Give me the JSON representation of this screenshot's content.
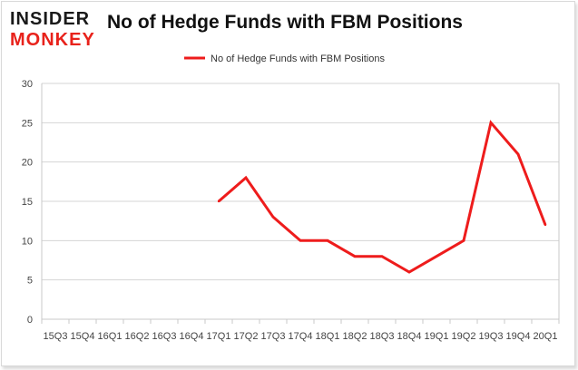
{
  "logo": {
    "line1": "INSIDER",
    "line2": "MONKEY",
    "color_top": "#1a1a1a",
    "color_bottom": "#e8221b"
  },
  "chart_data": {
    "type": "line",
    "title": "No of Hedge Funds with FBM Positions",
    "legend": {
      "position": "top",
      "label": "No of Hedge Funds with FBM Positions"
    },
    "categories": [
      "15Q3",
      "15Q4",
      "16Q1",
      "16Q2",
      "16Q3",
      "16Q4",
      "17Q1",
      "17Q2",
      "17Q3",
      "17Q4",
      "18Q1",
      "18Q2",
      "18Q3",
      "18Q4",
      "19Q1",
      "19Q2",
      "19Q3",
      "19Q4",
      "20Q1"
    ],
    "series": [
      {
        "name": "No of Hedge Funds with FBM Positions",
        "color": "#ee1c1c",
        "values": [
          null,
          null,
          null,
          null,
          null,
          null,
          15,
          18,
          13,
          10,
          10,
          8,
          8,
          6,
          8,
          10,
          25,
          21,
          12
        ]
      }
    ],
    "ylim": [
      0,
      30
    ],
    "yticks": [
      0,
      5,
      10,
      15,
      20,
      25,
      30
    ],
    "grid": "horizontal",
    "xlabel": "",
    "ylabel": ""
  }
}
